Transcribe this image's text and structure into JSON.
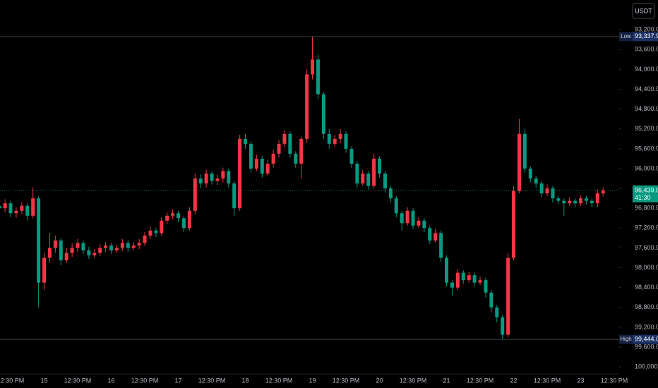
{
  "chart_data": {
    "type": "candlestick",
    "currency": "USDT",
    "inverted": true,
    "up_color": "#089981",
    "down_color": "#f23645",
    "ylim": [
      92600,
      100140
    ],
    "yticks": [
      {
        "value": 93200,
        "label": "93,200.0"
      },
      {
        "value": 93600,
        "label": "93,600.0"
      },
      {
        "value": 94000,
        "label": "94,000.0"
      },
      {
        "value": 94400,
        "label": "94,400.0"
      },
      {
        "value": 94800,
        "label": "94,800.0"
      },
      {
        "value": 95200,
        "label": "95,200.0"
      },
      {
        "value": 95600,
        "label": "95,600.0"
      },
      {
        "value": 96000,
        "label": "96,000.0"
      },
      {
        "value": 96400,
        "label": "96,400.0"
      },
      {
        "value": 96800,
        "label": "96,800.0"
      },
      {
        "value": 97200,
        "label": "97,200.0"
      },
      {
        "value": 97600,
        "label": "97,600.0"
      },
      {
        "value": 98000,
        "label": "98,000.0"
      },
      {
        "value": 98400,
        "label": "98,400.0"
      },
      {
        "value": 98800,
        "label": "98,800.0"
      },
      {
        "value": 99200,
        "label": "99,200.0"
      },
      {
        "value": 99600,
        "label": "99,600.0"
      },
      {
        "value": 100000,
        "label": "100,000.0"
      }
    ],
    "categories": [
      null,
      null,
      "12:30 PM",
      null,
      null,
      null,
      null,
      null,
      "15",
      null,
      null,
      null,
      null,
      null,
      "12:30 PM",
      null,
      null,
      null,
      null,
      null,
      "16",
      null,
      null,
      null,
      null,
      null,
      "12:30 PM",
      null,
      null,
      null,
      null,
      null,
      "17",
      null,
      null,
      null,
      null,
      null,
      "12:30 PM",
      null,
      null,
      null,
      null,
      null,
      "18",
      null,
      null,
      null,
      null,
      null,
      "12:30 PM",
      null,
      null,
      null,
      null,
      null,
      "19",
      null,
      null,
      null,
      null,
      null,
      "12:30 PM",
      null,
      null,
      null,
      null,
      null,
      "20",
      null,
      null,
      null,
      null,
      null,
      "12:30 PM",
      null,
      null,
      null,
      null,
      null,
      "21",
      null,
      null,
      null,
      null,
      null,
      "12:30 PM",
      null,
      null,
      null,
      null,
      null,
      "22",
      null,
      null,
      null,
      null,
      null,
      "12:30 PM",
      null,
      null,
      null,
      null,
      null,
      "23",
      null,
      null,
      null,
      null,
      null,
      "12:30 PM"
    ],
    "candles": [
      [
        96750,
        96900,
        96650,
        96800
      ],
      [
        96800,
        96880,
        96620,
        96700
      ],
      [
        96700,
        96980,
        96650,
        96900
      ],
      [
        96900,
        96990,
        96780,
        96850
      ],
      [
        96850,
        96920,
        96680,
        96750
      ],
      [
        96750,
        97050,
        96700,
        96950
      ],
      [
        96950,
        97000,
        96380,
        96600
      ],
      [
        96600,
        98800,
        96550,
        98300
      ],
      [
        98300,
        98450,
        97700,
        97800
      ],
      [
        97800,
        97900,
        97300,
        97600
      ],
      [
        97600,
        97700,
        97350,
        97450
      ],
      [
        97450,
        97950,
        97400,
        97850
      ],
      [
        97850,
        97900,
        97600,
        97700
      ],
      [
        97700,
        97780,
        97500,
        97600
      ],
      [
        97600,
        97680,
        97420,
        97500
      ],
      [
        97500,
        97720,
        97450,
        97650
      ],
      [
        97650,
        97820,
        97580,
        97750
      ],
      [
        97750,
        97800,
        97620,
        97700
      ],
      [
        97700,
        97760,
        97520,
        97600
      ],
      [
        97600,
        97680,
        97480,
        97550
      ],
      [
        97550,
        97720,
        97500,
        97650
      ],
      [
        97650,
        97700,
        97530,
        97600
      ],
      [
        97600,
        97660,
        97420,
        97500
      ],
      [
        97500,
        97680,
        97450,
        97600
      ],
      [
        97600,
        97650,
        97480,
        97550
      ],
      [
        97550,
        97620,
        97420,
        97500
      ],
      [
        97500,
        97560,
        97280,
        97350
      ],
      [
        97350,
        97420,
        97180,
        97250
      ],
      [
        97250,
        97380,
        97200,
        97300
      ],
      [
        97300,
        97360,
        96980,
        97050
      ],
      [
        97050,
        97120,
        96880,
        96950
      ],
      [
        96950,
        97020,
        96820,
        96900
      ],
      [
        96900,
        97080,
        96850,
        97000
      ],
      [
        97000,
        97280,
        96950,
        97200
      ],
      [
        97200,
        97250,
        96780,
        96850
      ],
      [
        96850,
        96920,
        96100,
        96200
      ],
      [
        96200,
        96400,
        96120,
        96300
      ],
      [
        96300,
        96380,
        96020,
        96100
      ],
      [
        96100,
        96320,
        96050,
        96250
      ],
      [
        96250,
        96330,
        96120,
        96200
      ],
      [
        96200,
        96280,
        95980,
        96050
      ],
      [
        96050,
        96380,
        96000,
        96300
      ],
      [
        96300,
        96950,
        96250,
        96800
      ],
      [
        96800,
        96850,
        95320,
        95400
      ],
      [
        95400,
        95600,
        95300,
        95500
      ],
      [
        95500,
        96080,
        95450,
        96000
      ],
      [
        96000,
        96050,
        95720,
        95800
      ],
      [
        95800,
        96180,
        95750,
        96100
      ],
      [
        96100,
        96150,
        95820,
        95900
      ],
      [
        95900,
        95980,
        95620,
        95700
      ],
      [
        95700,
        95780,
        95420,
        95500
      ],
      [
        95500,
        95560,
        95220,
        95300
      ],
      [
        95300,
        95780,
        95250,
        95700
      ],
      [
        95700,
        95980,
        95650,
        95900
      ],
      [
        95900,
        96200,
        95350,
        95400
      ],
      [
        95400,
        95480,
        94000,
        94100
      ],
      [
        94100,
        94200,
        93337.9,
        93800
      ],
      [
        93800,
        94600,
        93700,
        94500
      ],
      [
        94500,
        95400,
        94450,
        95300
      ],
      [
        95300,
        95600,
        95200,
        95500
      ],
      [
        95500,
        95550,
        95320,
        95400
      ],
      [
        95400,
        95480,
        95200,
        95300
      ],
      [
        95300,
        95680,
        95250,
        95600
      ],
      [
        95600,
        95980,
        95550,
        95900
      ],
      [
        95900,
        96380,
        95850,
        96300
      ],
      [
        96300,
        96350,
        96020,
        96100
      ],
      [
        96100,
        96420,
        96050,
        96350
      ],
      [
        96350,
        96400,
        95700,
        95800
      ],
      [
        95800,
        96180,
        95750,
        96100
      ],
      [
        96100,
        96480,
        96050,
        96400
      ],
      [
        96400,
        96680,
        96350,
        96600
      ],
      [
        96600,
        96980,
        96550,
        96900
      ],
      [
        96900,
        97250,
        96850,
        97100
      ],
      [
        97100,
        97150,
        96780,
        96850
      ],
      [
        96850,
        97220,
        96800,
        97150
      ],
      [
        97150,
        97200,
        96980,
        97050
      ],
      [
        97050,
        97280,
        97000,
        97200
      ],
      [
        97200,
        97520,
        97150,
        97450
      ],
      [
        97450,
        97500,
        97220,
        97300
      ],
      [
        97300,
        97880,
        97250,
        97800
      ],
      [
        97800,
        98380,
        97750,
        98300
      ],
      [
        98300,
        98550,
        98250,
        98400
      ],
      [
        98400,
        98450,
        98020,
        98100
      ],
      [
        98100,
        98320,
        98050,
        98250
      ],
      [
        98250,
        98300,
        98080,
        98150
      ],
      [
        98150,
        98380,
        98100,
        98300
      ],
      [
        98300,
        98350,
        98180,
        98250
      ],
      [
        98250,
        98600,
        98200,
        98500
      ],
      [
        98500,
        98900,
        98450,
        98800
      ],
      [
        98800,
        99100,
        98750,
        99000
      ],
      [
        99000,
        99444,
        98950,
        99350
      ],
      [
        99350,
        99400,
        97700,
        97800
      ],
      [
        97800,
        97850,
        96350,
        96450
      ],
      [
        96450,
        96500,
        95000,
        95300
      ],
      [
        95300,
        96080,
        95200,
        96000
      ],
      [
        96000,
        96280,
        95950,
        96200
      ],
      [
        96200,
        96380,
        96150,
        96300
      ],
      [
        96300,
        96580,
        96250,
        96500
      ],
      [
        96500,
        96550,
        96320,
        96400
      ],
      [
        96400,
        96680,
        96350,
        96600
      ],
      [
        96600,
        96720,
        96550,
        96650
      ],
      [
        96650,
        96950,
        96600,
        96700
      ],
      [
        96700,
        96750,
        96580,
        96650
      ],
      [
        96650,
        96780,
        96600,
        96700
      ],
      [
        96700,
        96750,
        96540,
        96600
      ],
      [
        96600,
        96720,
        96550,
        96650
      ],
      [
        96650,
        96780,
        96600,
        96700
      ],
      [
        96700,
        96780,
        96420,
        96500
      ],
      [
        96500,
        96560,
        96380,
        96439
      ],
      null,
      null
    ],
    "low_tag": "Low",
    "low_label": "93,337.9",
    "high_tag": "High",
    "high_label": "99,444.0",
    "last_price_label": "96,439.0",
    "countdown": "41:30"
  }
}
